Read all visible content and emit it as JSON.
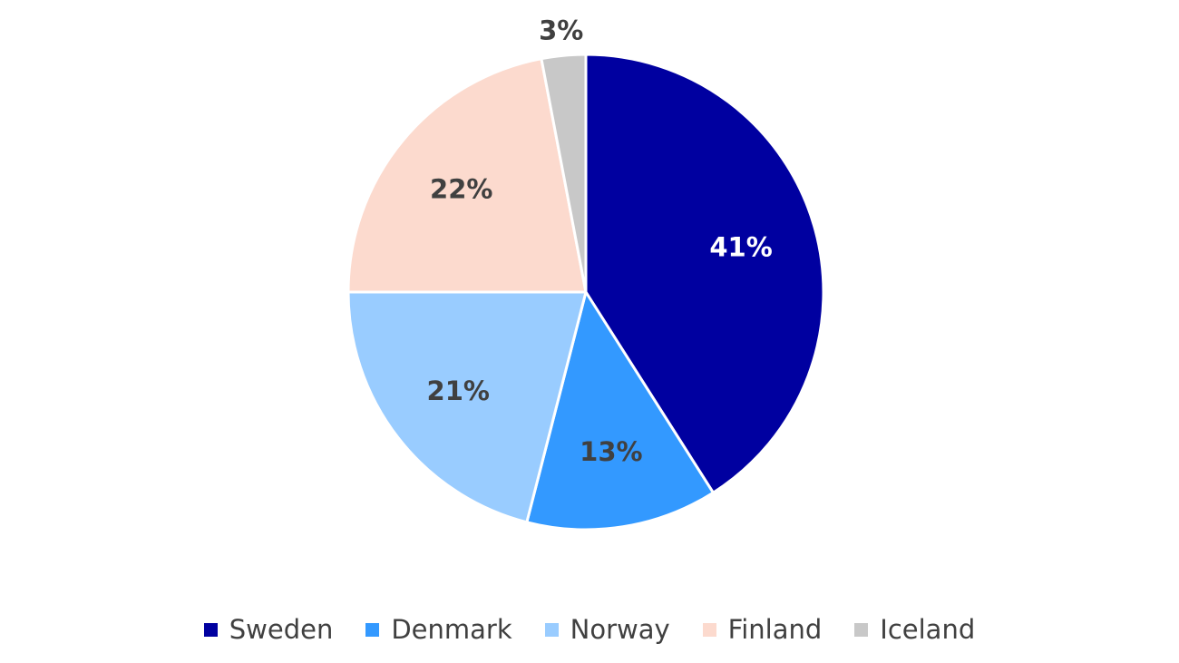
{
  "chart_data": {
    "type": "pie",
    "title": "",
    "start_angle_deg": 0,
    "direction": "clockwise",
    "slices": [
      {
        "name": "Sweden",
        "value": 41,
        "label": "41%",
        "color": "#0000A0",
        "label_color": "#FFFFFF"
      },
      {
        "name": "Denmark",
        "value": 13,
        "label": "13%",
        "color": "#3399FF",
        "label_color": "#404040"
      },
      {
        "name": "Norway",
        "value": 21,
        "label": "21%",
        "color": "#99CCFF",
        "label_color": "#404040"
      },
      {
        "name": "Finland",
        "value": 22,
        "label": "22%",
        "color": "#FCDACE",
        "label_color": "#404040"
      },
      {
        "name": "Iceland",
        "value": 3,
        "label": "3%",
        "color": "#C8C8C8",
        "label_color": "#404040"
      }
    ],
    "legend": {
      "placement": "bottom",
      "items": [
        "Sweden",
        "Denmark",
        "Norway",
        "Finland",
        "Iceland"
      ]
    }
  }
}
